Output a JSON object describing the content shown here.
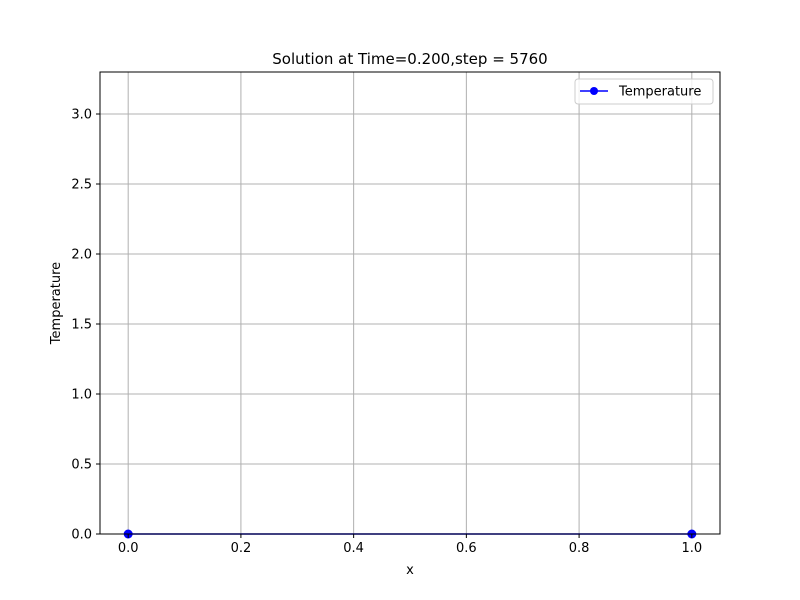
{
  "chart_data": {
    "type": "line",
    "title": "Solution at Time=0.200,step = 5760",
    "xlabel": "x",
    "ylabel": "Temperature",
    "xlim": [
      -0.05,
      1.05
    ],
    "ylim": [
      0.0,
      3.3
    ],
    "xticks": [
      0.0,
      0.2,
      0.4,
      0.6,
      0.8,
      1.0
    ],
    "xtick_labels": [
      "0.0",
      "0.2",
      "0.4",
      "0.6",
      "0.8",
      "1.0"
    ],
    "yticks": [
      0.0,
      0.5,
      1.0,
      1.5,
      2.0,
      2.5,
      3.0
    ],
    "ytick_labels": [
      "0.0",
      "0.5",
      "1.0",
      "1.5",
      "2.0",
      "2.5",
      "3.0"
    ],
    "grid": true,
    "legend_position": "top-right",
    "series": [
      {
        "name": "Temperature",
        "color": "#0000ff",
        "marker": "circle",
        "x": [
          0.0,
          1.0
        ],
        "y": [
          0.0,
          0.0
        ]
      }
    ]
  }
}
